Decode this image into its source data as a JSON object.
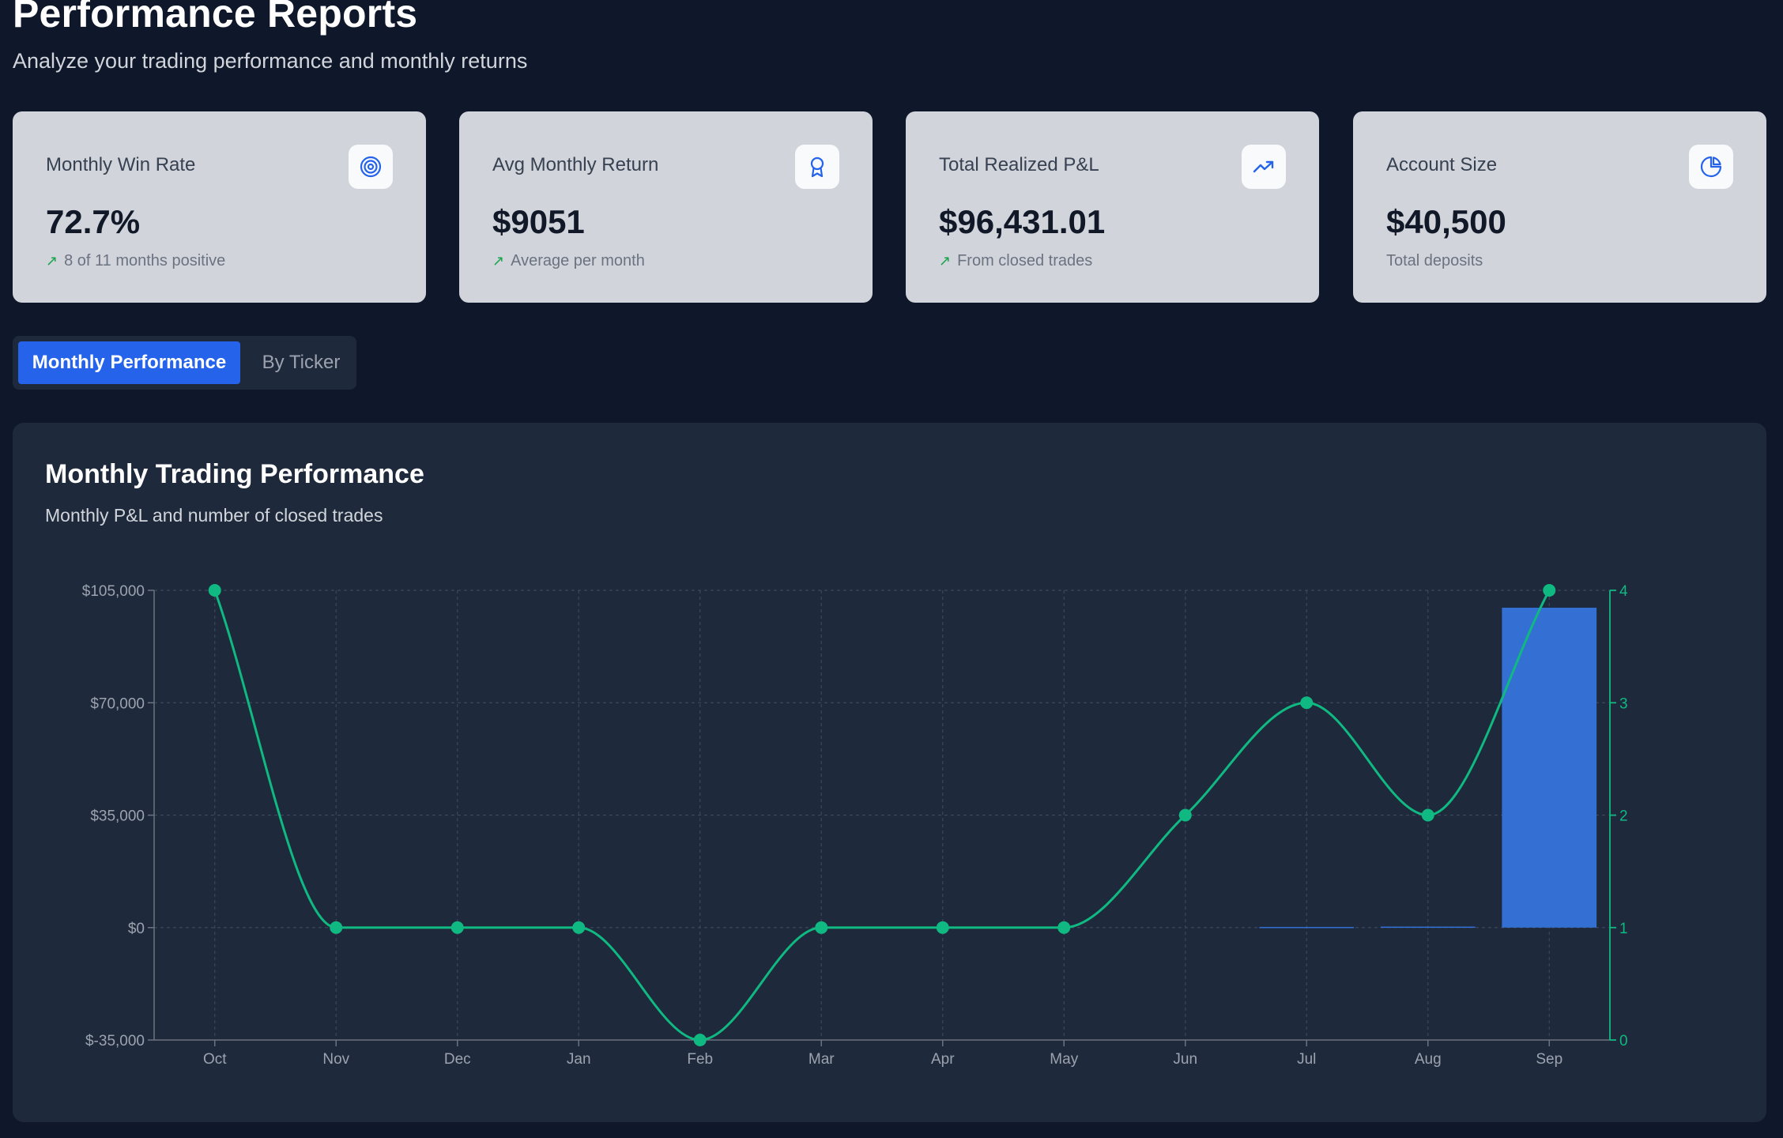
{
  "header": {
    "title": "Performance Reports",
    "subtitle": "Analyze your trading performance and monthly returns"
  },
  "stats": [
    {
      "label": "Monthly Win Rate",
      "value": "72.7%",
      "note": "8 of 11 months positive",
      "trend": "up",
      "icon": "target-icon"
    },
    {
      "label": "Avg Monthly Return",
      "value": "$9051",
      "note": "Average per month",
      "trend": "up",
      "icon": "award-icon"
    },
    {
      "label": "Total Realized P&L",
      "value": "$96,431.01",
      "note": "From closed trades",
      "trend": "up",
      "icon": "trending-up-icon"
    },
    {
      "label": "Account Size",
      "value": "$40,500",
      "note": "Total deposits",
      "trend": "none",
      "icon": "pie-chart-icon"
    }
  ],
  "tabs": [
    {
      "label": "Monthly Performance",
      "active": true
    },
    {
      "label": "By Ticker",
      "active": false
    }
  ],
  "chart": {
    "title": "Monthly Trading Performance",
    "subtitle": "Monthly P&L and number of closed trades"
  },
  "colors": {
    "background": "#0f172a",
    "panel": "#1e293b",
    "card": "#d1d5db",
    "accent": "#2563eb",
    "bar": "#3470d3",
    "line": "#10b981",
    "positive": "#16a34a"
  },
  "chart_data": {
    "type": "bar",
    "categories": [
      "Oct",
      "Nov",
      "Dec",
      "Jan",
      "Feb",
      "Mar",
      "Apr",
      "May",
      "Jun",
      "Jul",
      "Aug",
      "Sep"
    ],
    "series": [
      {
        "type": "bar",
        "axis": "left",
        "values": [
          0,
          0,
          0,
          0,
          0,
          0,
          0,
          0,
          0,
          200,
          300,
          99600
        ]
      },
      {
        "type": "line",
        "axis": "right",
        "values": [
          4,
          1,
          1,
          1,
          0,
          1,
          1,
          1,
          2,
          3,
          2,
          4
        ]
      }
    ],
    "y_left": {
      "min": -35000,
      "max": 105000,
      "ticks": [
        -35000,
        0,
        35000,
        70000,
        105000
      ],
      "tick_labels": [
        "$-35,000",
        "$0",
        "$35,000",
        "$70,000",
        "$105,000"
      ]
    },
    "y_right": {
      "min": 0,
      "max": 4,
      "ticks": [
        0,
        1,
        2,
        3,
        4
      ],
      "tick_labels": [
        "0",
        "1",
        "2",
        "3",
        "4"
      ]
    },
    "grid": true,
    "legend": "none"
  }
}
